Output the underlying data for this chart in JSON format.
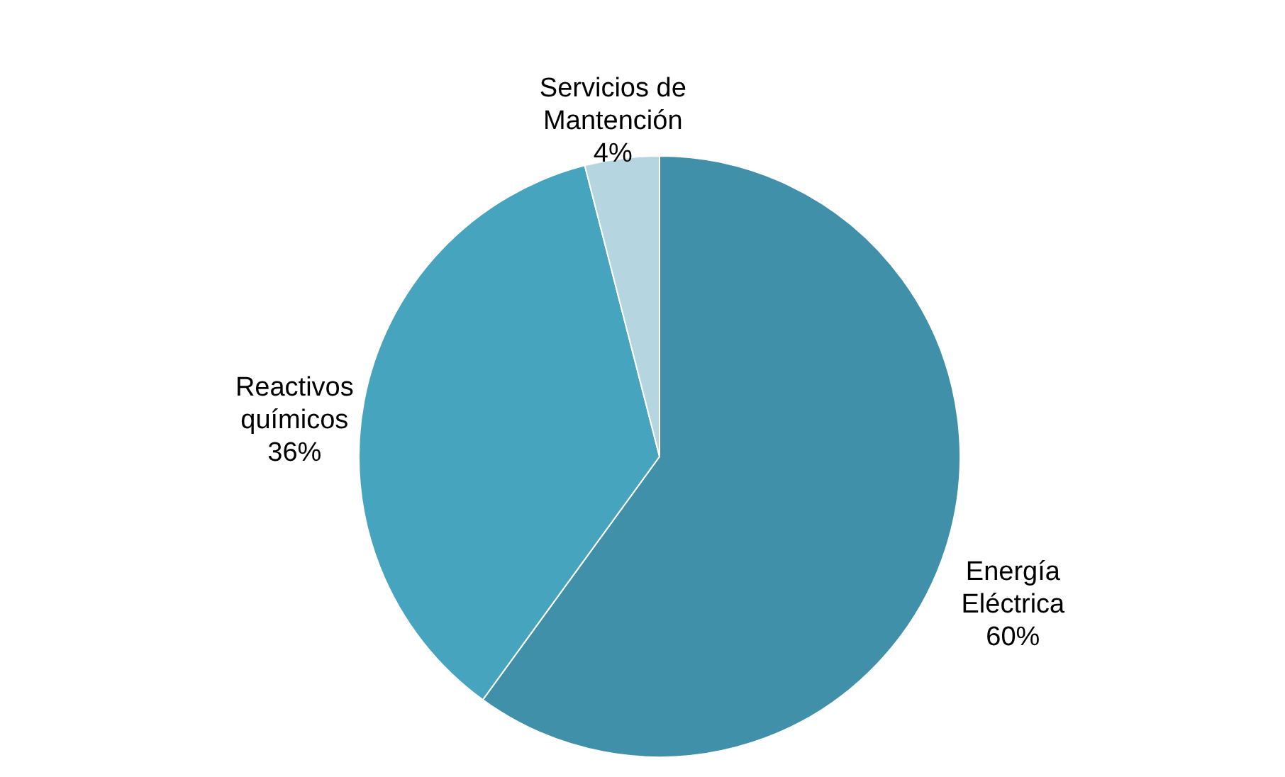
{
  "chart_data": {
    "type": "pie",
    "categories": [
      "Energía Eléctrica",
      "Reactivos químicos",
      "Servicios de Mantención"
    ],
    "values": [
      60,
      36,
      4
    ],
    "value_labels": [
      "60%",
      "36%",
      "4%"
    ],
    "colors": [
      "#4190aa",
      "#46a4be",
      "#b5d5e0"
    ]
  }
}
